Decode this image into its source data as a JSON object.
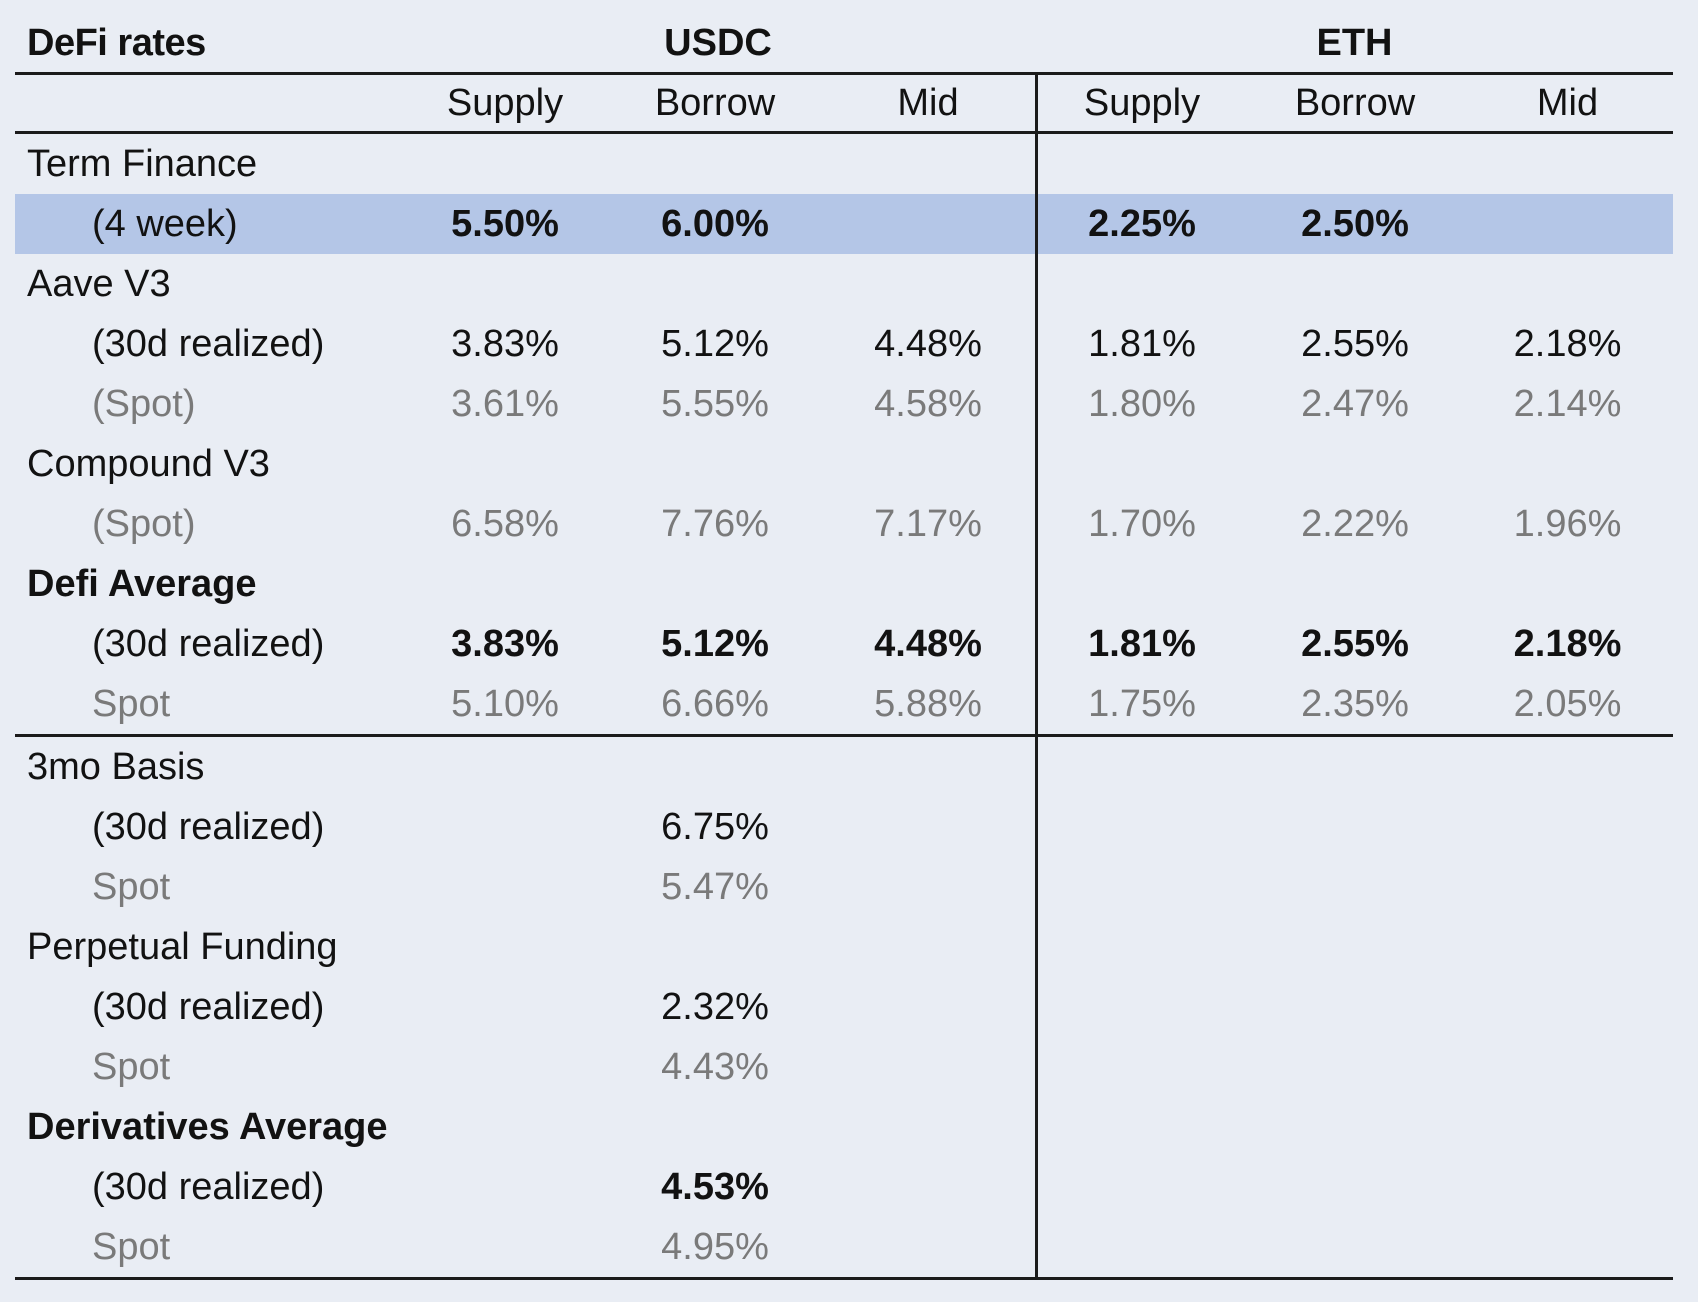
{
  "title": "DeFi rates",
  "colors": {
    "background": "#e9edf4",
    "highlight": "#b4c6e7",
    "text": "#121212",
    "muted": "#7a7a7a",
    "line": "#1b1b1b"
  },
  "chart_data": {
    "type": "table",
    "title": "DeFi rates",
    "groups": [
      {
        "label": "USDC",
        "span": 3
      },
      {
        "label": "ETH",
        "span": 3
      }
    ],
    "columns": [
      "Supply",
      "Borrow",
      "Mid",
      "Supply",
      "Borrow",
      "Mid"
    ],
    "rows": [
      {
        "label": "Term Finance",
        "indent": 0,
        "bold_label": false,
        "gray": false,
        "highlight": false,
        "bold_values": false,
        "section_end": false,
        "values": [
          "",
          "",
          "",
          "",
          "",
          ""
        ]
      },
      {
        "label": "(4 week)",
        "indent": 1,
        "bold_label": false,
        "gray": false,
        "highlight": true,
        "bold_values": true,
        "section_end": false,
        "values": [
          "5.50%",
          "6.00%",
          "",
          "2.25%",
          "2.50%",
          ""
        ]
      },
      {
        "label": "Aave V3",
        "indent": 0,
        "bold_label": false,
        "gray": false,
        "highlight": false,
        "bold_values": false,
        "section_end": false,
        "values": [
          "",
          "",
          "",
          "",
          "",
          ""
        ]
      },
      {
        "label": "(30d realized)",
        "indent": 1,
        "bold_label": false,
        "gray": false,
        "highlight": false,
        "bold_values": false,
        "section_end": false,
        "values": [
          "3.83%",
          "5.12%",
          "4.48%",
          "1.81%",
          "2.55%",
          "2.18%"
        ]
      },
      {
        "label": "(Spot)",
        "indent": 1,
        "bold_label": false,
        "gray": true,
        "highlight": false,
        "bold_values": false,
        "section_end": false,
        "values": [
          "3.61%",
          "5.55%",
          "4.58%",
          "1.80%",
          "2.47%",
          "2.14%"
        ]
      },
      {
        "label": "Compound V3",
        "indent": 0,
        "bold_label": false,
        "gray": false,
        "highlight": false,
        "bold_values": false,
        "section_end": false,
        "values": [
          "",
          "",
          "",
          "",
          "",
          ""
        ]
      },
      {
        "label": "(Spot)",
        "indent": 1,
        "bold_label": false,
        "gray": true,
        "highlight": false,
        "bold_values": false,
        "section_end": false,
        "values": [
          "6.58%",
          "7.76%",
          "7.17%",
          "1.70%",
          "2.22%",
          "1.96%"
        ]
      },
      {
        "label": "Defi Average",
        "indent": 0,
        "bold_label": true,
        "gray": false,
        "highlight": false,
        "bold_values": false,
        "section_end": false,
        "values": [
          "",
          "",
          "",
          "",
          "",
          ""
        ]
      },
      {
        "label": "(30d realized)",
        "indent": 1,
        "bold_label": false,
        "gray": false,
        "highlight": false,
        "bold_values": true,
        "section_end": false,
        "values": [
          "3.83%",
          "5.12%",
          "4.48%",
          "1.81%",
          "2.55%",
          "2.18%"
        ]
      },
      {
        "label": "Spot",
        "indent": 1,
        "bold_label": false,
        "gray": true,
        "highlight": false,
        "bold_values": false,
        "section_end": true,
        "values": [
          "5.10%",
          "6.66%",
          "5.88%",
          "1.75%",
          "2.35%",
          "2.05%"
        ]
      },
      {
        "label": "3mo Basis",
        "indent": 0,
        "bold_label": false,
        "gray": false,
        "highlight": false,
        "bold_values": false,
        "section_end": false,
        "values": [
          "",
          "",
          "",
          "",
          "",
          ""
        ]
      },
      {
        "label": "(30d realized)",
        "indent": 1,
        "bold_label": false,
        "gray": false,
        "highlight": false,
        "bold_values": false,
        "section_end": false,
        "values": [
          "",
          "6.75%",
          "",
          "",
          "",
          ""
        ]
      },
      {
        "label": "Spot",
        "indent": 1,
        "bold_label": false,
        "gray": true,
        "highlight": false,
        "bold_values": false,
        "section_end": false,
        "values": [
          "",
          "5.47%",
          "",
          "",
          "",
          ""
        ]
      },
      {
        "label": "Perpetual Funding",
        "indent": 0,
        "bold_label": false,
        "gray": false,
        "highlight": false,
        "bold_values": false,
        "section_end": false,
        "values": [
          "",
          "",
          "",
          "",
          "",
          ""
        ]
      },
      {
        "label": "(30d realized)",
        "indent": 1,
        "bold_label": false,
        "gray": false,
        "highlight": false,
        "bold_values": false,
        "section_end": false,
        "values": [
          "",
          "2.32%",
          "",
          "",
          "",
          ""
        ]
      },
      {
        "label": "Spot",
        "indent": 1,
        "bold_label": false,
        "gray": true,
        "highlight": false,
        "bold_values": false,
        "section_end": false,
        "values": [
          "",
          "4.43%",
          "",
          "",
          "",
          ""
        ]
      },
      {
        "label": "Derivatives Average",
        "indent": 0,
        "bold_label": true,
        "gray": false,
        "highlight": false,
        "bold_values": false,
        "section_end": false,
        "values": [
          "",
          "",
          "",
          "",
          "",
          ""
        ]
      },
      {
        "label": "(30d realized)",
        "indent": 1,
        "bold_label": false,
        "gray": false,
        "highlight": false,
        "bold_values": true,
        "section_end": false,
        "values": [
          "",
          "4.53%",
          "",
          "",
          "",
          ""
        ]
      },
      {
        "label": "Spot",
        "indent": 1,
        "bold_label": false,
        "gray": true,
        "highlight": false,
        "bold_values": false,
        "section_end": true,
        "values": [
          "",
          "4.95%",
          "",
          "",
          "",
          ""
        ]
      }
    ]
  }
}
